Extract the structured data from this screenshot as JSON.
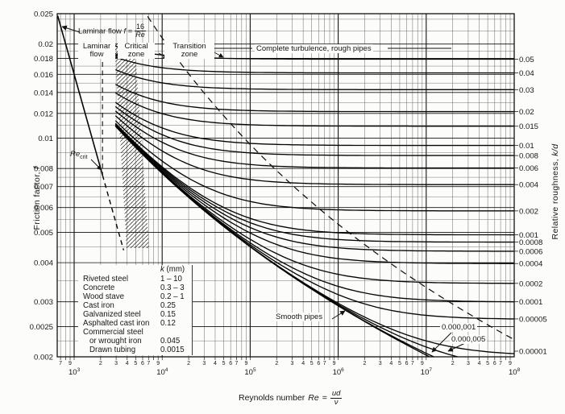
{
  "page": {
    "bg": "#fcfcfa",
    "ink": "#161616"
  },
  "y_left_axis": {
    "title_main": "Friction factor,",
    "title_var": "f"
  },
  "y_right_axis": {
    "title_main": "Relative roughness,",
    "title_var": "k/d"
  },
  "x_axis_title": {
    "prefix": "Reynolds number",
    "var": "Re",
    "eq": "=",
    "frac_num": "ud",
    "frac_den": "ν"
  },
  "zone_labels": {
    "laminar_1": "Laminar",
    "laminar_2": "flow",
    "critical_1": "Critical",
    "critical_2": "zone",
    "transition_1": "Transition",
    "transition_2": "zone",
    "complete": "Complete turbulence, rough pipes"
  },
  "annotations": {
    "laminar_eq_prefix": "Laminar flow",
    "laminar_eq_var": "f",
    "laminar_eq_sign": "=",
    "laminar_eq_num": "16",
    "laminar_eq_den": "Re",
    "re_crit_base": "Re",
    "re_crit_sub": "crit",
    "smooth": "Smooth pipes",
    "micro_rough_1": "0.000,001",
    "micro_rough_2": "0.000,005"
  },
  "legend": {
    "header_var": "k",
    "header_unit": " (mm)",
    "rows": [
      {
        "name": "Riveted steel",
        "k": "1 – 10",
        "indent": false
      },
      {
        "name": "Concrete",
        "k": "0.3 – 3",
        "indent": false
      },
      {
        "name": "Wood stave",
        "k": "0.2 – 1",
        "indent": false
      },
      {
        "name": "Cast iron",
        "k": "0.25",
        "indent": false
      },
      {
        "name": "Galvanized steel",
        "k": "0.15",
        "indent": false
      },
      {
        "name": "Asphalted cast iron",
        "k": "0.12",
        "indent": false
      },
      {
        "name": "Commercial steel",
        "k": "",
        "indent": false
      },
      {
        "name": "or wrought iron",
        "k": "0.045",
        "indent": true
      },
      {
        "name": "Drawn tubing",
        "k": "0.0015",
        "indent": true
      }
    ]
  },
  "chart_data": {
    "type": "line",
    "title": "",
    "x_axis": {
      "label": "Reynolds number Re = ud/ν",
      "scale": "log",
      "range": [
        650,
        100000000
      ],
      "decade_exponents": [
        3,
        4,
        5,
        6,
        7,
        8
      ],
      "minor_grid_digits": [
        2,
        3,
        4,
        5,
        6,
        7,
        8,
        9
      ],
      "labeled_minor_digits": [
        2,
        3,
        4,
        5,
        6,
        7,
        9
      ],
      "leading_labeled_ticks": [
        700,
        900
      ]
    },
    "y_axis": {
      "label": "Friction factor, f",
      "scale": "log",
      "range": [
        0.002,
        0.025
      ],
      "labeled_ticks": [
        0.025,
        0.02,
        0.018,
        0.016,
        0.014,
        0.012,
        0.01,
        0.008,
        0.007,
        0.006,
        0.005,
        0.004,
        0.003,
        0.0025,
        0.002
      ],
      "minor_ticks": [
        0.00225,
        0.0035,
        0.0045,
        0.0055,
        0.0065,
        0.0075,
        0.009,
        0.011,
        0.013,
        0.015,
        0.017,
        0.019,
        0.022,
        0.024
      ]
    },
    "y2_axis": {
      "label": "Relative roughness, k/d",
      "labeled_ticks": [
        0.05,
        0.04,
        0.03,
        0.02,
        0.015,
        0.01,
        0.008,
        0.006,
        0.004,
        0.002,
        0.001,
        0.0008,
        0.0006,
        0.0004,
        0.0002,
        0.0001,
        5e-05,
        1e-05
      ]
    },
    "series": {
      "relative_roughness_curves": [
        0.05,
        0.04,
        0.03,
        0.02,
        0.015,
        0.01,
        0.008,
        0.006,
        0.004,
        0.002,
        0.001,
        0.0008,
        0.0006,
        0.0004,
        0.0002,
        0.0001,
        5e-05,
        1e-05,
        5e-06,
        1e-06
      ],
      "smooth_pipe_curve": 0,
      "laminar_line": {
        "equation": "f = 16/Re",
        "re_solid": [
          650,
          2100
        ],
        "re_dashed": [
          2100,
          3650
        ]
      },
      "critical_re": 2100
    },
    "zone_annotations": [
      "Laminar flow",
      "Critical zone",
      "Transition zone",
      "Complete turbulence, rough pipes",
      "Smooth pipes",
      "0.000,001",
      "0.000,005",
      "Re crit",
      "Laminar flow f = 16/Re"
    ]
  }
}
